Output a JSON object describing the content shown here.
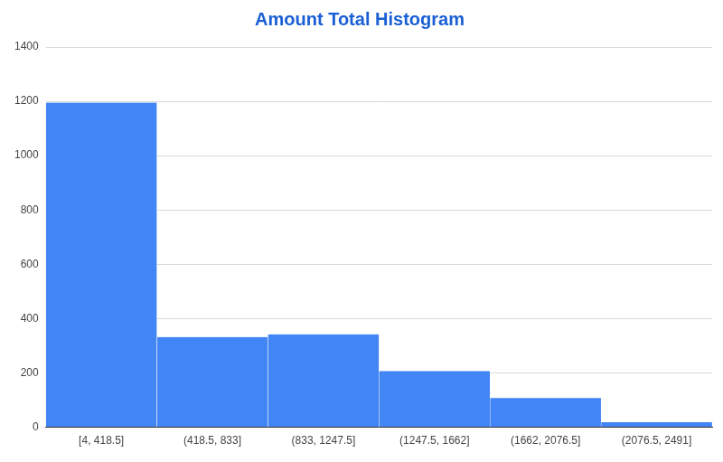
{
  "chart_data": {
    "type": "bar",
    "title": "Amount Total Histogram",
    "categories": [
      "[4, 418.5]",
      "(418.5, 833]",
      "(833, 1247.5]",
      "(1247.5, 1662]",
      "(1662, 2076.5]",
      "(2076.5, 2491]"
    ],
    "values": [
      1195,
      332,
      342,
      207,
      108,
      19
    ],
    "color": "#4285f4",
    "ylim": [
      0,
      1400
    ],
    "yticks": [
      0,
      200,
      400,
      600,
      800,
      1000,
      1200,
      1400
    ],
    "grid": true
  }
}
